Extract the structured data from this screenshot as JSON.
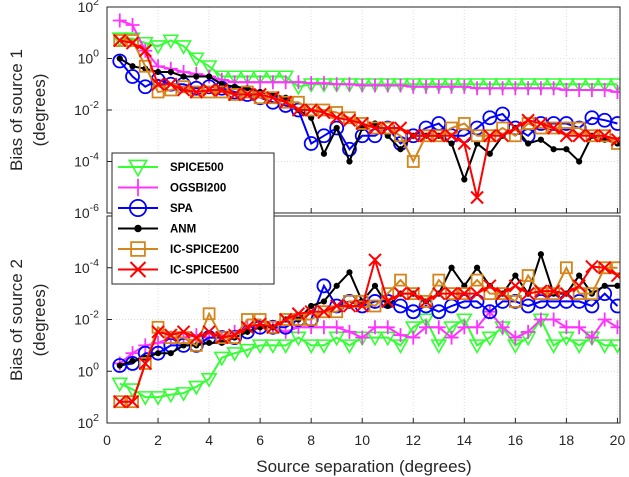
{
  "chart_data": {
    "type": "line",
    "xlabel": "Source separation (degrees)",
    "x_ticks": [
      "0",
      "2",
      "4",
      "6",
      "8",
      "10",
      "12",
      "14",
      "16",
      "18",
      "20"
    ],
    "xlim": [
      0,
      20.1
    ],
    "grid": true,
    "legend_position": "inside-left-lower-of-top-panel",
    "panels": [
      {
        "ylabel_line1": "Bias of source 1",
        "ylabel_line2": "(degrees)",
        "yscale": "log",
        "ylim": [
          1e-06,
          100
        ],
        "y_direction": "normal",
        "y_ticks": [
          {
            "base": "10",
            "exp": "2"
          },
          {
            "base": "10",
            "exp": "0"
          },
          {
            "base": "10",
            "exp": "-2"
          },
          {
            "base": "10",
            "exp": "-4"
          },
          {
            "base": "10",
            "exp": "-6"
          }
        ],
        "x": [
          0.5,
          1,
          1.5,
          2,
          2.5,
          3,
          3.5,
          4,
          4.5,
          5,
          5.5,
          6,
          6.5,
          7,
          7.5,
          8,
          8.5,
          9,
          9.5,
          10,
          10.5,
          11,
          11.5,
          12,
          12.5,
          13,
          13.5,
          14,
          14.5,
          15,
          15.5,
          16,
          16.5,
          17,
          17.5,
          18,
          18.5,
          19,
          19.5,
          20
        ],
        "series": [
          {
            "name": "SPICE500",
            "color": "#33ff33",
            "marker": "triangle-down",
            "values": [
              6,
              6,
              4,
              3,
              5,
              3,
              1,
              0.5,
              0.2,
              0.2,
              0.2,
              0.2,
              0.2,
              0.2,
              0.08,
              0.1,
              0.1,
              0.1,
              0.1,
              0.1,
              0.1,
              0.1,
              0.1,
              0.1,
              0.1,
              0.1,
              0.1,
              0.1,
              0.1,
              0.1,
              0.1,
              0.1,
              0.1,
              0.1,
              0.1,
              0.1,
              0.1,
              0.1,
              0.1,
              0.1
            ]
          },
          {
            "name": "OGSBI200",
            "color": "#ff33ff",
            "marker": "plus",
            "values": [
              30,
              20,
              2,
              0.5,
              0.4,
              0.3,
              0.25,
              0.2,
              0.15,
              0.12,
              0.12,
              0.12,
              0.12,
              0.12,
              0.12,
              0.11,
              0.11,
              0.1,
              0.1,
              0.09,
              0.09,
              0.09,
              0.09,
              0.08,
              0.08,
              0.08,
              0.08,
              0.08,
              0.07,
              0.07,
              0.07,
              0.07,
              0.07,
              0.07,
              0.07,
              0.06,
              0.06,
              0.06,
              0.06,
              0.05
            ]
          },
          {
            "name": "SPA",
            "color": "#0000ff",
            "marker": "circle",
            "values": [
              0.8,
              0.2,
              0.08,
              0.15,
              0.1,
              0.1,
              0.07,
              0.08,
              0.07,
              0.05,
              0.04,
              0.03,
              0.02,
              0.015,
              0.01,
              0.0005,
              0.001,
              0.002,
              0.0003,
              0.001,
              0.001,
              0.002,
              0.0005,
              0.001,
              0.002,
              0.003,
              0.001,
              0.001,
              0.002,
              0.005,
              0.007,
              0.002,
              0.001,
              0.003,
              0.003,
              0.003,
              0.002,
              0.005,
              0.004,
              0.003
            ]
          },
          {
            "name": "ANM",
            "color": "#000000",
            "marker": "dot",
            "values": [
              1,
              0.5,
              0.4,
              0.3,
              0.3,
              0.2,
              0.2,
              0.2,
              0.1,
              0.08,
              0.07,
              0.05,
              0.04,
              0.03,
              0.01,
              0.005,
              0.0002,
              0.002,
              0.0001,
              0.002,
              0.003,
              0.001,
              0.0003,
              0.001,
              0.001,
              0.001,
              0.0005,
              2e-05,
              0.0005,
              0.0002,
              0.001,
              0.002,
              0.0005,
              0.0007,
              0.0003,
              0.0003,
              0.0001,
              0.001,
              0.0007,
              0.0005
            ]
          },
          {
            "name": "IC-SPICE200",
            "color": "#d4861c",
            "marker": "square",
            "values": [
              5,
              5,
              0.5,
              0.05,
              0.06,
              0.08,
              0.05,
              0.05,
              0.05,
              0.04,
              0.05,
              0.03,
              0.03,
              0.02,
              0.02,
              0.01,
              0.01,
              0.008,
              0.005,
              0.003,
              0.002,
              0.002,
              0.001,
              0.0001,
              0.001,
              0.001,
              0.002,
              0.003,
              0.001,
              0.001,
              0.002,
              0.001,
              0.003,
              0.002,
              0.002,
              0.002,
              0.002,
              0.001,
              0.001,
              0.0005
            ]
          },
          {
            "name": "IC-SPICE500",
            "color": "#ff0000",
            "marker": "x",
            "values": [
              5,
              4,
              2,
              0.1,
              0.1,
              0.06,
              0.05,
              0.06,
              0.06,
              0.04,
              0.04,
              0.04,
              0.03,
              0.02,
              0.01,
              0.01,
              0.008,
              0.005,
              0.004,
              0.003,
              0.002,
              0.002,
              0.002,
              0.001,
              0.001,
              0.001,
              0.001,
              0.0005,
              4e-06,
              0.001,
              0.001,
              0.002,
              0.004,
              0.003,
              0.002,
              0.001,
              0.001,
              0.001,
              0.001,
              0.0007
            ]
          }
        ]
      },
      {
        "ylabel_line1": "Bias of source 2",
        "ylabel_line2": "(degrees)",
        "yscale": "log",
        "ylim": [
          1e-06,
          100
        ],
        "y_direction": "reversed",
        "y_ticks": [
          {
            "base": "10",
            "exp": "-4"
          },
          {
            "base": "10",
            "exp": "-2"
          },
          {
            "base": "10",
            "exp": "0"
          },
          {
            "base": "10",
            "exp": "2"
          }
        ],
        "x": [
          0.5,
          1,
          1.5,
          2,
          2.5,
          3,
          3.5,
          4,
          4.5,
          5,
          5.5,
          6,
          6.5,
          7,
          7.5,
          8,
          8.5,
          9,
          9.5,
          10,
          10.5,
          11,
          11.5,
          12,
          12.5,
          13,
          13.5,
          14,
          14.5,
          15,
          15.5,
          16,
          16.5,
          17,
          17.5,
          18,
          18.5,
          19,
          19.5,
          20
        ],
        "series": [
          {
            "name": "SPICE500",
            "color": "#33ff33",
            "marker": "triangle-down",
            "values": [
              3,
              5,
              10,
              10,
              8,
              7,
              4,
              2,
              0.3,
              0.2,
              0.15,
              0.1,
              0.1,
              0.1,
              0.05,
              0.1,
              0.1,
              0.05,
              0.1,
              0.05,
              0.05,
              0.05,
              0.1,
              0.02,
              0.01,
              0.1,
              0.02,
              0.01,
              0.1,
              0.05,
              0.02,
              0.1,
              0.05,
              0.01,
              0.1,
              0.05,
              0.1,
              0.05,
              0.1,
              0.1
            ]
          },
          {
            "name": "OGSBI200",
            "color": "#ff33ff",
            "marker": "plus",
            "values": [
              0.5,
              0.2,
              0.1,
              0.08,
              0.05,
              0.05,
              0.04,
              0.05,
              0.05,
              0.03,
              0.02,
              0.02,
              0.02,
              0.03,
              0.02,
              0.02,
              0.02,
              0.02,
              0.03,
              0.05,
              0.02,
              0.02,
              0.04,
              0.05,
              0.02,
              0.02,
              0.05,
              0.02,
              0.02,
              0.005,
              0.02,
              0.05,
              0.03,
              0.01,
              0.01,
              0.02,
              0.02,
              0.05,
              0.01,
              0.02
            ]
          },
          {
            "name": "SPA",
            "color": "#0000ff",
            "marker": "circle",
            "values": [
              0.6,
              0.5,
              0.2,
              0.2,
              0.1,
              0.1,
              0.1,
              0.05,
              0.05,
              0.05,
              0.03,
              0.02,
              0.02,
              0.02,
              0.01,
              0.01,
              0.0005,
              0.003,
              0.002,
              0.003,
              0.002,
              0.002,
              0.003,
              0.005,
              0.003,
              0.005,
              0.003,
              0.002,
              0.002,
              0.005,
              0.002,
              0.002,
              0.003,
              0.002,
              0.002,
              0.002,
              0.002,
              0.003,
              0.001,
              0.003
            ]
          },
          {
            "name": "ANM",
            "color": "#000000",
            "marker": "dot",
            "values": [
              0.6,
              0.4,
              0.3,
              0.2,
              0.2,
              0.1,
              0.1,
              0.08,
              0.08,
              0.05,
              0.03,
              0.02,
              0.02,
              0.01,
              0.01,
              0.003,
              0.002,
              0.0005,
              0.00015,
              0.002,
              0.0005,
              0.003,
              0.001,
              0.001,
              0.002,
              0.001,
              0.0001,
              0.0005,
              0.0001,
              0.0005,
              0.001,
              0.0002,
              0.001,
              3e-05,
              0.001,
              0.001,
              0.0002,
              0.001,
              0.0005,
              0.0005
            ]
          },
          {
            "name": "IC-SPICE200",
            "color": "#d4861c",
            "marker": "square",
            "values": [
              15,
              15,
              0.5,
              0.02,
              0.05,
              0.05,
              0.1,
              0.006,
              0.05,
              0.05,
              0.01,
              0.01,
              0.02,
              0.01,
              0.01,
              0.01,
              0.005,
              0.005,
              0.002,
              0.002,
              0.003,
              0.001,
              0.0003,
              0.001,
              0.002,
              0.0003,
              0.001,
              0.001,
              0.0003,
              0.001,
              0.001,
              0.002,
              0.0002,
              0.001,
              0.001,
              0.0001,
              0.001,
              0.001,
              0.0001,
              0.0001
            ]
          },
          {
            "name": "IC-SPICE500",
            "color": "#ff0000",
            "marker": "x",
            "values": [
              15,
              15,
              0.5,
              0.03,
              0.04,
              0.03,
              0.05,
              0.03,
              0.05,
              0.04,
              0.02,
              0.015,
              0.02,
              0.01,
              0.006,
              0.005,
              0.005,
              0.003,
              0.003,
              0.003,
              5e-05,
              0.002,
              0.001,
              0.001,
              0.002,
              0.001,
              0.001,
              0.001,
              0.001,
              0.0005,
              0.001,
              0.0005,
              0.001,
              0.0008,
              0.0008,
              0.001,
              0.0005,
              9e-05,
              0.0001,
              0.0002
            ]
          }
        ]
      }
    ]
  }
}
